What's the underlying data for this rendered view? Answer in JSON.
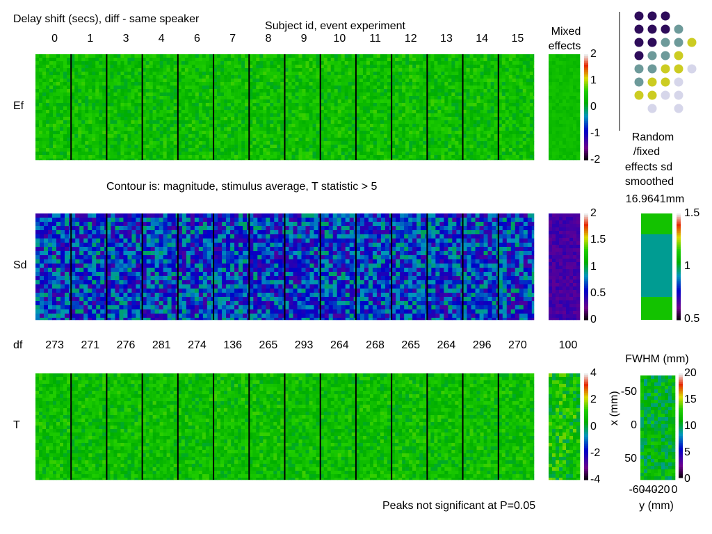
{
  "header": {
    "title": "Delay shift (secs), diff - same speaker",
    "subtitle": "Subject id, event experiment",
    "mixed_label": [
      "Mixed",
      "effects"
    ],
    "contour_note": "Contour is: magnitude, stimulus average, T statistic > 5",
    "random_label": [
      "Random",
      "/fixed",
      "effects sd",
      "smoothed"
    ],
    "smoothing_value": "16.9641mm",
    "df_label": "df",
    "fwhm_label": "FWHM (mm)",
    "peaks_note": "Peaks not significant at P=0.05"
  },
  "chart_data": {
    "type": "heatmap",
    "subjects": [
      "0",
      "1",
      "3",
      "4",
      "6",
      "7",
      "8",
      "9",
      "10",
      "11",
      "12",
      "13",
      "14",
      "15"
    ],
    "rows": [
      {
        "label": "Ef",
        "colormap": "spectral",
        "colorbar_ticks": [
          "2",
          "1",
          "0",
          "-1",
          "-2"
        ],
        "range": [
          -2,
          2
        ]
      },
      {
        "label": "Sd",
        "colormap": "spectral",
        "colorbar_ticks": [
          "2",
          "1.5",
          "1",
          "0.5",
          "0"
        ],
        "range": [
          0,
          2
        ]
      },
      {
        "label": "T",
        "colormap": "spectral",
        "colorbar_ticks": [
          "4",
          "2",
          "0",
          "-2",
          "-4"
        ],
        "range": [
          -4,
          4
        ]
      }
    ],
    "df": [
      "273",
      "271",
      "276",
      "281",
      "274",
      "136",
      "265",
      "293",
      "264",
      "268",
      "265",
      "264",
      "296",
      "270"
    ],
    "mixed_df": "100",
    "random_sd_colorbar": [
      "1.5",
      "1",
      "0.5"
    ],
    "fwhm": {
      "colorbar_ticks": [
        "20",
        "15",
        "10",
        "5",
        "0"
      ],
      "x_axis_label": "x (mm)",
      "y_axis_label": "y (mm)",
      "x_ticks": [
        "-50",
        "0",
        "50"
      ],
      "y_ticks": [
        "-60",
        "-40",
        "-20",
        "0"
      ]
    },
    "legend_dot_colors": [
      "#2e0c5a",
      "#6d9a9a",
      "#cccc22",
      "#d6d6ea"
    ]
  }
}
